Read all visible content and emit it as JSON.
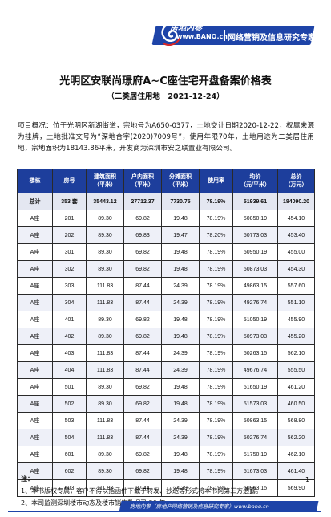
{
  "header": {
    "brand_cn": "房地内参",
    "brand_url": "www.BANQ.cn",
    "slogan": "网络营销及信息研究专家"
  },
  "title": "光明区安联尚璟府A~C座住宅开盘备案价格表",
  "subtitle": "（二类居住用地　2021-12-24）",
  "overview": "项目概况：位于光明区新湖街道，宗地号为A650-0377，土地交让日期2020-12-22，权属来源为挂牌，土地批准文号为“深地合字(2020)7009号”，使用年限70年，土地用途为二类居住用地，宗地面积为18143.86平米，开发商为深圳市安之联置业有限公司。",
  "table": {
    "headers": [
      "楼栋",
      "房号",
      "建筑面积\n（平米）",
      "户内面积\n（平米）",
      "分摊面积\n（平米）",
      "使用率",
      "均价\n（元/平米）",
      "总价\n（万元）"
    ],
    "total": [
      "总计",
      "353 套",
      "35443.12",
      "27712.37",
      "7730.75",
      "78.19%",
      "51939.61",
      "184090.20"
    ],
    "rows": [
      [
        "A座",
        "201",
        "89.30",
        "69.82",
        "19.48",
        "78.19%",
        "50850.19",
        "454.10"
      ],
      [
        "A座",
        "202",
        "89.30",
        "69.83",
        "19.47",
        "78.20%",
        "50773.03",
        "453.40"
      ],
      [
        "A座",
        "301",
        "89.30",
        "69.82",
        "19.48",
        "78.19%",
        "50950.19",
        "455.00"
      ],
      [
        "A座",
        "302",
        "89.30",
        "69.82",
        "19.48",
        "78.19%",
        "50873.03",
        "454.30"
      ],
      [
        "A座",
        "303",
        "111.83",
        "87.44",
        "24.39",
        "78.19%",
        "49863.15",
        "557.60"
      ],
      [
        "A座",
        "304",
        "111.83",
        "87.44",
        "24.39",
        "78.19%",
        "49276.74",
        "551.10"
      ],
      [
        "A座",
        "401",
        "89.30",
        "69.82",
        "19.48",
        "78.19%",
        "51050.19",
        "455.90"
      ],
      [
        "A座",
        "402",
        "89.30",
        "69.82",
        "19.48",
        "78.19%",
        "50973.03",
        "455.20"
      ],
      [
        "A座",
        "403",
        "111.83",
        "87.44",
        "24.39",
        "78.19%",
        "50263.15",
        "562.10"
      ],
      [
        "A座",
        "404",
        "111.83",
        "87.44",
        "24.39",
        "78.19%",
        "49676.74",
        "555.50"
      ],
      [
        "A座",
        "501",
        "89.30",
        "69.82",
        "19.48",
        "78.19%",
        "51650.19",
        "461.20"
      ],
      [
        "A座",
        "502",
        "89.30",
        "69.82",
        "19.48",
        "78.19%",
        "51573.03",
        "460.50"
      ],
      [
        "A座",
        "503",
        "111.83",
        "87.44",
        "24.39",
        "78.19%",
        "50863.15",
        "568.80"
      ],
      [
        "A座",
        "504",
        "111.83",
        "87.44",
        "24.39",
        "78.19%",
        "50276.74",
        "562.20"
      ],
      [
        "A座",
        "601",
        "89.30",
        "69.82",
        "19.48",
        "78.19%",
        "51750.19",
        "462.10"
      ],
      [
        "A座",
        "602",
        "89.30",
        "69.82",
        "19.48",
        "78.19%",
        "51673.03",
        "461.40"
      ],
      [
        "A座",
        "603",
        "111.83",
        "87.44",
        "24.39",
        "78.19%",
        "50963.15",
        "569.90"
      ]
    ]
  },
  "notes": {
    "heading": "注：",
    "items": [
      "1、本书版权专属，客户不得以指函件下载于转发、抄送等形式将本书向第三方透露。",
      "2、本司监测深圳楼市动态及楼市销售数据已 20 年。"
    ]
  },
  "page_number": "1",
  "footer": {
    "text": "房地内参（房地产网络营销及信息研究专家）www.banq.cn"
  },
  "colors": {
    "brand_blue": "#1e44a8",
    "header_blue": "#1d3e9c"
  }
}
